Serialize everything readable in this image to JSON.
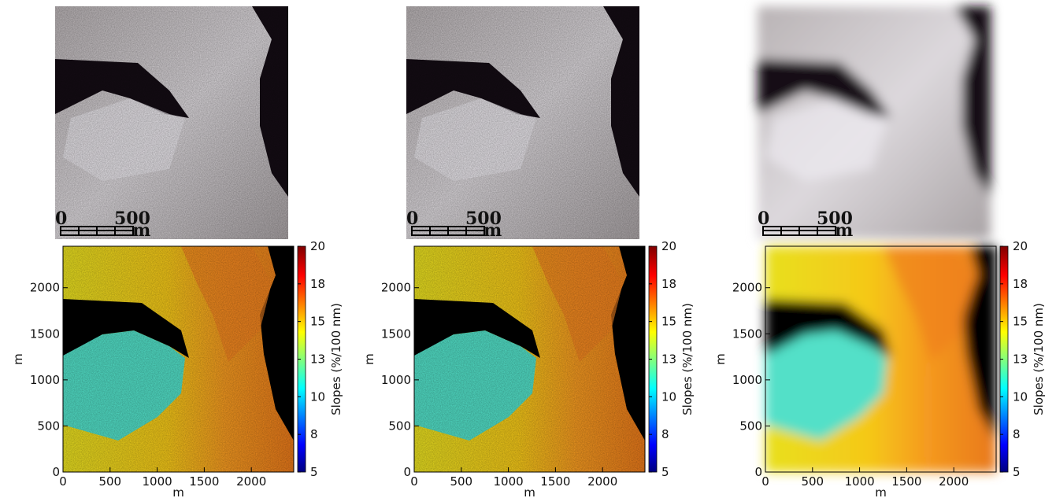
{
  "photos": [
    {
      "scale_labels": [
        "0",
        "500",
        "m"
      ]
    },
    {
      "scale_labels": [
        "0",
        "500",
        "m"
      ]
    },
    {
      "scale_labels": [
        "0",
        "500",
        "m"
      ]
    }
  ],
  "maps": [
    {
      "xlabel": "m",
      "ylabel": "m",
      "xlim": [
        0,
        2450
      ],
      "ylim": [
        0,
        2450
      ],
      "xticks": [
        0,
        500,
        1000,
        1500,
        2000
      ],
      "yticks": [
        0,
        500,
        1000,
        1500,
        2000
      ],
      "colorbar": {
        "label": "Slopes (%/100 nm)",
        "lim": [
          5,
          20
        ],
        "ticks": [
          5,
          {
            "value": 7.5,
            "label": "8"
          },
          10,
          {
            "value": 12.5,
            "label": "13"
          },
          15,
          {
            "value": 17.5,
            "label": "18"
          },
          20
        ]
      }
    },
    {
      "xlabel": "m",
      "ylabel": "m",
      "xlim": [
        0,
        2450
      ],
      "ylim": [
        0,
        2450
      ],
      "xticks": [
        0,
        500,
        1000,
        1500,
        2000
      ],
      "yticks": [
        0,
        500,
        1000,
        1500,
        2000
      ],
      "colorbar": {
        "label": "Slopes (%/100 nm)",
        "lim": [
          5,
          20
        ],
        "ticks": [
          5,
          {
            "value": 7.5,
            "label": "8"
          },
          10,
          {
            "value": 12.5,
            "label": "13"
          },
          15,
          {
            "value": 17.5,
            "label": "18"
          },
          20
        ]
      }
    },
    {
      "xlabel": "m",
      "ylabel": "m",
      "xlim": [
        0,
        2450
      ],
      "ylim": [
        0,
        2450
      ],
      "xticks": [
        0,
        500,
        1000,
        1500,
        2000
      ],
      "yticks": [
        0,
        500,
        1000,
        1500,
        2000
      ],
      "colorbar": {
        "label": "Slopes (%/100 nm)",
        "lim": [
          5,
          20
        ],
        "ticks": [
          5,
          {
            "value": 7.5,
            "label": "8"
          },
          10,
          {
            "value": 12.5,
            "label": "13"
          },
          15,
          {
            "value": 17.5,
            "label": "18"
          },
          20
        ]
      }
    }
  ]
}
